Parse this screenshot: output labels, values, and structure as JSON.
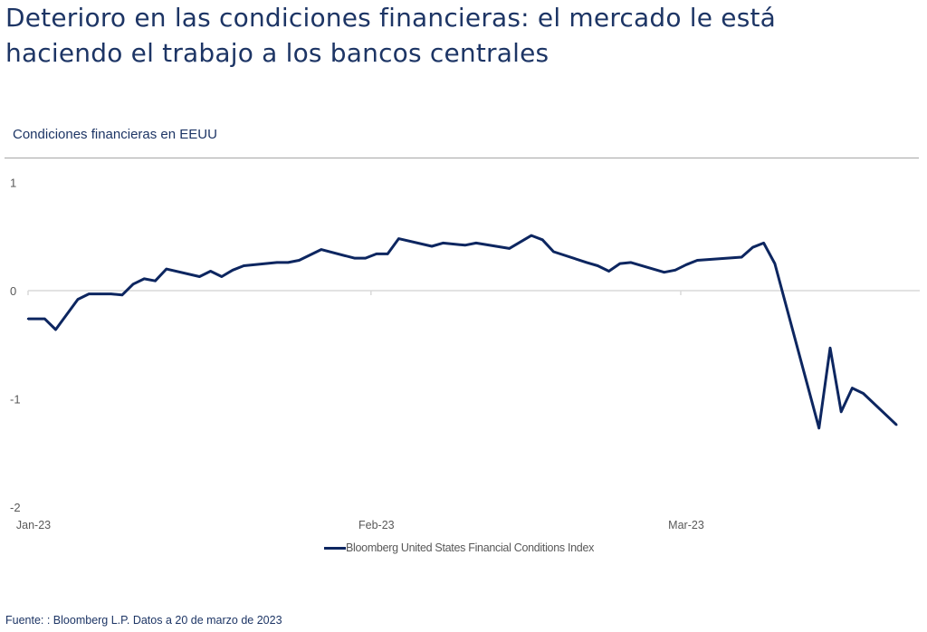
{
  "header": {
    "title_line1": "Deterioro en las condiciones financieras: el mercado le está",
    "title_line2": "haciendo el trabajo a los bancos centrales",
    "subtitle": "Condiciones financieras en EEUU"
  },
  "footer": {
    "source": "Fuente: : Bloomberg L.P. Datos a 20 de marzo de 2023"
  },
  "colors": {
    "title": "#1d3565",
    "series": "#0d2660",
    "axis_text": "#595959",
    "zero_line": "#d9d9d9"
  },
  "chart_data": {
    "type": "line",
    "title": "Condiciones financieras en EEUU",
    "xlabel": "",
    "ylabel": "",
    "ylim": [
      -2,
      1
    ],
    "yticks": [
      1,
      0,
      -1,
      -2
    ],
    "ytick_labels": [
      "1",
      "0",
      "-1",
      "-2"
    ],
    "xticks": [
      {
        "day": 0,
        "label": "Jan-23"
      },
      {
        "day": 31,
        "label": "Feb-23"
      },
      {
        "day": 59,
        "label": "Mar-23"
      }
    ],
    "xlim_days": [
      0,
      80
    ],
    "legend": {
      "position": "bottom",
      "entries": [
        "Bloomberg United States Financial Conditions Index"
      ]
    },
    "grid": false,
    "series": [
      {
        "name": "Bloomberg United States Financial Conditions Index",
        "x_days": [
          0,
          1.5,
          2.5,
          4.5,
          5.5,
          6.5,
          7.5,
          8.5,
          9.5,
          10.5,
          11.5,
          12.5,
          15.5,
          16.5,
          17.5,
          18.5,
          19.5,
          22.5,
          23.5,
          24.5,
          26.5,
          29.5,
          30.5,
          31.5,
          32.5,
          33.5,
          36.5,
          37.5,
          39.5,
          40.5,
          43.5,
          45.5,
          46.5,
          47.5,
          50.5,
          51.5,
          52.5,
          53.5,
          54.5,
          57.5,
          58.5,
          59.5,
          60.5,
          64.5,
          65.5,
          66.5,
          67.5,
          71.5,
          72.5,
          73.5,
          74.5,
          75.5,
          78.5
        ],
        "values": [
          -0.26,
          -0.26,
          -0.36,
          -0.08,
          -0.03,
          -0.03,
          -0.03,
          -0.04,
          0.06,
          0.11,
          0.09,
          0.2,
          0.13,
          0.18,
          0.13,
          0.19,
          0.23,
          0.26,
          0.26,
          0.28,
          0.38,
          0.3,
          0.3,
          0.34,
          0.34,
          0.48,
          0.41,
          0.44,
          0.42,
          0.44,
          0.39,
          0.51,
          0.47,
          0.36,
          0.26,
          0.23,
          0.18,
          0.25,
          0.26,
          0.17,
          0.19,
          0.24,
          0.28,
          0.31,
          0.4,
          0.44,
          0.25,
          -1.27,
          -0.53,
          -1.12,
          -0.9,
          -0.95,
          -1.24
        ]
      }
    ]
  }
}
